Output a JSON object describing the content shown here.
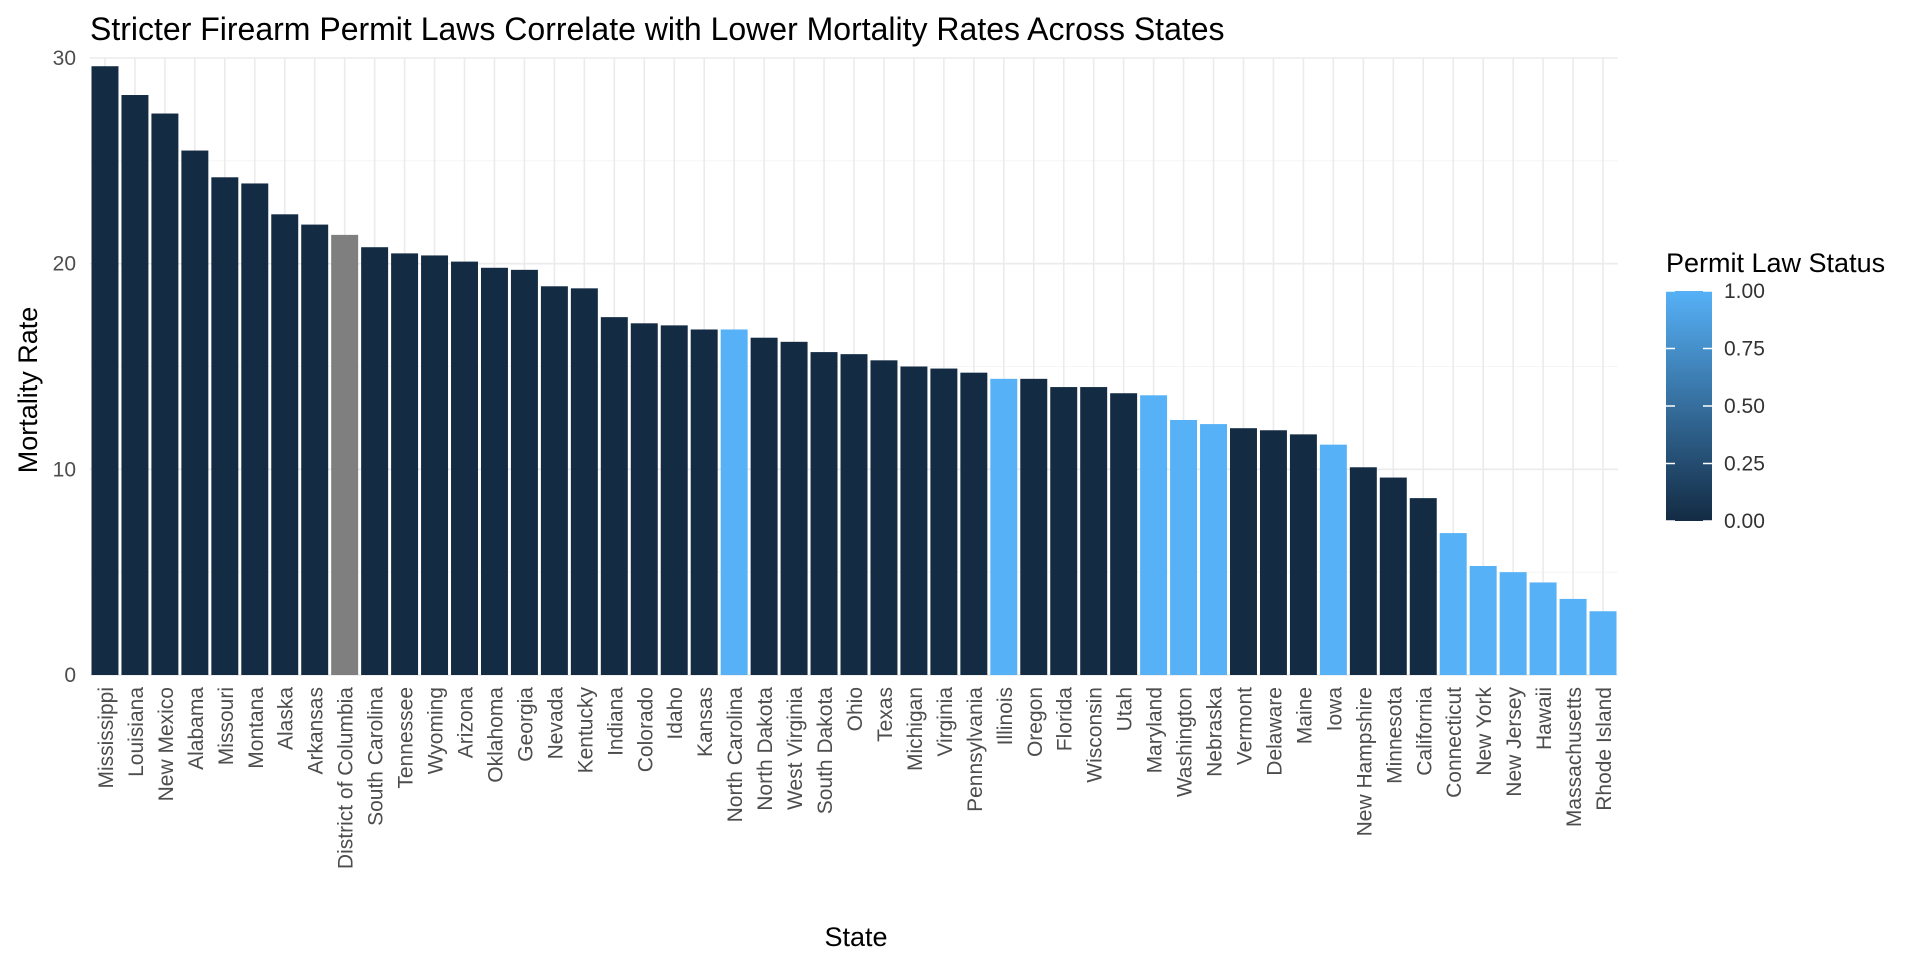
{
  "chart_data": {
    "type": "bar",
    "title": "Stricter Firearm Permit Laws Correlate with Lower Mortality Rates Across States",
    "xlabel": "State",
    "ylabel": "Mortality Rate",
    "ylim": [
      0,
      30
    ],
    "yticks": [
      0,
      10,
      20,
      30
    ],
    "grid": true,
    "legend": {
      "title": "Permit Law Status",
      "position": "right",
      "range": [
        0,
        1
      ],
      "ticks": [
        "1.00",
        "0.75",
        "0.50",
        "0.25",
        "0.00"
      ],
      "low_color": "#132b43",
      "high_color": "#56b1f7",
      "na_color": "#7f7f7f"
    },
    "categories": [
      "Mississippi",
      "Louisiana",
      "New Mexico",
      "Alabama",
      "Missouri",
      "Montana",
      "Alaska",
      "Arkansas",
      "District of Columbia",
      "South Carolina",
      "Tennessee",
      "Wyoming",
      "Arizona",
      "Oklahoma",
      "Georgia",
      "Nevada",
      "Kentucky",
      "Indiana",
      "Colorado",
      "Idaho",
      "Kansas",
      "North Carolina",
      "North Dakota",
      "West Virginia",
      "South Dakota",
      "Ohio",
      "Texas",
      "Michigan",
      "Virginia",
      "Pennsylvania",
      "Illinois",
      "Oregon",
      "Florida",
      "Wisconsin",
      "Utah",
      "Maryland",
      "Washington",
      "Nebraska",
      "Vermont",
      "Delaware",
      "Maine",
      "Iowa",
      "New Hampshire",
      "Minnesota",
      "California",
      "Connecticut",
      "New York",
      "New Jersey",
      "Hawaii",
      "Massachusetts",
      "Rhode Island"
    ],
    "values": [
      29.6,
      28.2,
      27.3,
      25.5,
      24.2,
      23.9,
      22.4,
      21.9,
      21.4,
      20.8,
      20.5,
      20.4,
      20.1,
      19.8,
      19.7,
      18.9,
      18.8,
      17.4,
      17.1,
      17.0,
      16.8,
      16.8,
      16.4,
      16.2,
      15.7,
      15.6,
      15.3,
      15.0,
      14.9,
      14.7,
      14.4,
      14.4,
      14.0,
      14.0,
      13.7,
      13.6,
      12.4,
      12.2,
      12.0,
      11.9,
      11.7,
      11.2,
      10.1,
      9.6,
      8.6,
      6.9,
      5.3,
      5.0,
      4.5,
      3.7,
      3.1
    ],
    "permit_status": [
      0,
      0,
      0,
      0,
      0,
      0,
      0,
      0,
      null,
      0,
      0,
      0,
      0,
      0,
      0,
      0,
      0,
      0,
      0,
      0,
      0,
      1,
      0,
      0,
      0,
      0,
      0,
      0,
      0,
      0,
      1,
      0,
      0,
      0,
      0,
      1,
      1,
      1,
      0,
      0,
      0,
      1,
      0,
      0,
      0,
      1,
      1,
      1,
      1,
      1,
      1
    ]
  }
}
